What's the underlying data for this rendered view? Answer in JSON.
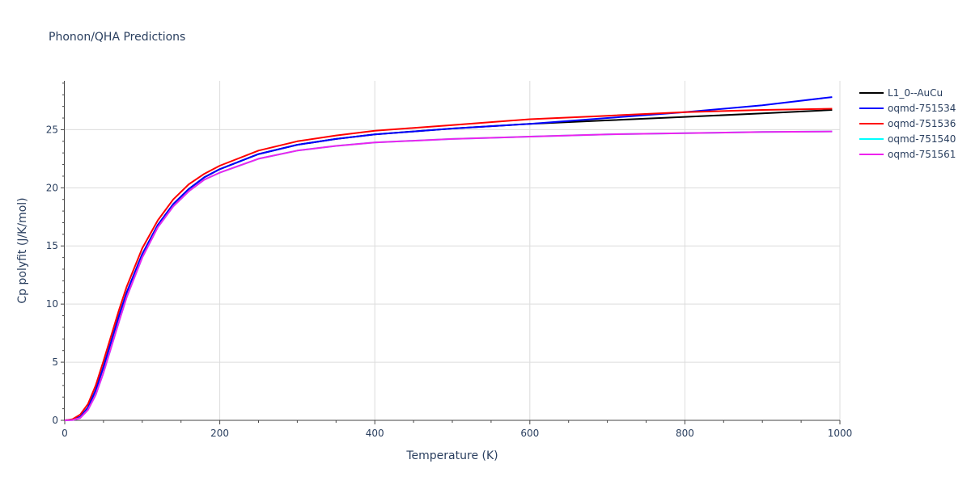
{
  "chart_data": {
    "type": "line",
    "title": "Phonon/QHA Predictions",
    "xlabel": "Temperature (K)",
    "ylabel": "Cp polyfit (J/K/mol)",
    "xlim": [
      0,
      1000
    ],
    "ylim": [
      0,
      29.2
    ],
    "xticks": [
      0,
      200,
      400,
      600,
      800,
      1000
    ],
    "yticks": [
      0,
      5,
      10,
      15,
      20,
      25
    ],
    "grid": true,
    "legend_position": "top-right",
    "series": [
      {
        "name": "L1_0--AuCu",
        "color": "#000000",
        "x": [
          0,
          10,
          20,
          30,
          40,
          50,
          60,
          70,
          80,
          100,
          120,
          140,
          160,
          180,
          200,
          250,
          300,
          350,
          400,
          500,
          600,
          700,
          800,
          900,
          990
        ],
        "y": [
          0,
          0.05,
          0.3,
          1.1,
          2.6,
          4.6,
          6.8,
          9.0,
          11.0,
          14.3,
          16.8,
          18.6,
          19.9,
          20.9,
          21.6,
          22.9,
          23.7,
          24.2,
          24.6,
          25.1,
          25.5,
          25.8,
          26.1,
          26.4,
          26.7
        ]
      },
      {
        "name": "oqmd-751534",
        "color": "#0000ff",
        "x": [
          0,
          10,
          20,
          30,
          40,
          50,
          60,
          70,
          80,
          100,
          120,
          140,
          160,
          180,
          200,
          250,
          300,
          350,
          400,
          500,
          600,
          700,
          800,
          900,
          990
        ],
        "y": [
          0,
          0.05,
          0.3,
          1.1,
          2.6,
          4.6,
          6.8,
          9.0,
          11.0,
          14.3,
          16.8,
          18.6,
          19.9,
          20.9,
          21.6,
          22.9,
          23.7,
          24.2,
          24.6,
          25.1,
          25.5,
          26.0,
          26.5,
          27.1,
          27.8
        ]
      },
      {
        "name": "oqmd-751536",
        "color": "#ff0000",
        "x": [
          0,
          10,
          20,
          30,
          40,
          50,
          60,
          70,
          80,
          100,
          120,
          140,
          160,
          180,
          200,
          250,
          300,
          350,
          400,
          500,
          600,
          700,
          800,
          900,
          990
        ],
        "y": [
          0,
          0.1,
          0.5,
          1.4,
          3.0,
          5.1,
          7.3,
          9.5,
          11.5,
          14.8,
          17.2,
          19.0,
          20.3,
          21.2,
          21.9,
          23.2,
          24.0,
          24.5,
          24.9,
          25.4,
          25.9,
          26.2,
          26.5,
          26.7,
          26.8
        ]
      },
      {
        "name": "oqmd-751540",
        "color": "#00ffff",
        "x": [
          0,
          10,
          20,
          30,
          40,
          50,
          60,
          70,
          80,
          100,
          120,
          140,
          160,
          180,
          200,
          250,
          300,
          350,
          400,
          500,
          600,
          700,
          800,
          900,
          990
        ],
        "y": [
          0,
          0.03,
          0.2,
          0.9,
          2.2,
          4.1,
          6.3,
          8.5,
          10.6,
          14.0,
          16.6,
          18.4,
          19.7,
          20.7,
          21.3,
          22.5,
          23.2,
          23.6,
          23.9,
          24.2,
          24.4,
          24.6,
          24.7,
          24.8,
          24.85
        ]
      },
      {
        "name": "oqmd-751561",
        "color": "#ee22ee",
        "x": [
          0,
          10,
          20,
          30,
          40,
          50,
          60,
          70,
          80,
          100,
          120,
          140,
          160,
          180,
          200,
          250,
          300,
          350,
          400,
          500,
          600,
          700,
          800,
          900,
          990
        ],
        "y": [
          0,
          0.03,
          0.2,
          0.9,
          2.2,
          4.1,
          6.3,
          8.5,
          10.6,
          14.0,
          16.6,
          18.4,
          19.7,
          20.7,
          21.3,
          22.5,
          23.2,
          23.6,
          23.9,
          24.2,
          24.4,
          24.6,
          24.7,
          24.8,
          24.85
        ]
      }
    ]
  }
}
